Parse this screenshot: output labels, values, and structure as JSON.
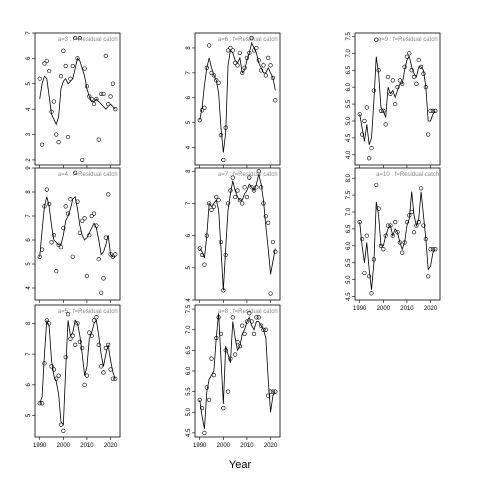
{
  "xlabel": "Year",
  "chart_data": [
    {
      "type": "scatter-line",
      "annotation": "a=3  :  f=Residual catch",
      "xlim": [
        1988,
        2024
      ],
      "xticks": [
        1990,
        2000,
        2010,
        2020
      ],
      "show_xticklabels": false,
      "ylim": [
        1.8,
        7.0
      ],
      "yticks": [
        2,
        3,
        4,
        5,
        6,
        7
      ],
      "x": [
        1990,
        1991,
        1992,
        1993,
        1994,
        1995,
        1996,
        1997,
        1998,
        1999,
        2000,
        2001,
        2002,
        2003,
        2004,
        2005,
        2006,
        2007,
        2008,
        2009,
        2010,
        2011,
        2012,
        2013,
        2014,
        2015,
        2016,
        2017,
        2018,
        2019,
        2020,
        2021,
        2022
      ],
      "series": [
        {
          "marker": "circle",
          "color": "#000000",
          "values": [
            5.2,
            2.6,
            5.8,
            5.9,
            5.5,
            3.9,
            4.3,
            3.0,
            2.7,
            5.3,
            6.3,
            5.7,
            2.9,
            5.2,
            5.7,
            6.8,
            6.0,
            6.8,
            2.0,
            5.6,
            4.9,
            4.5,
            4.4,
            4.2,
            4.4,
            2.8,
            4.6,
            4.6,
            6.1,
            4.2,
            4.5,
            5.0,
            4.0
          ]
        },
        {
          "marker": "none",
          "color": "#000000",
          "values": [
            4.4,
            5.0,
            5.3,
            5.2,
            4.5,
            3.8,
            3.6,
            3.4,
            3.7,
            4.8,
            5.1,
            5.2,
            5.0,
            5.1,
            5.2,
            5.6,
            6.0,
            5.9,
            5.6,
            5.3,
            4.8,
            4.5,
            4.3,
            4.3,
            4.4,
            4.3,
            4.2,
            4.1,
            4.0,
            4.1,
            4.2,
            4.1,
            4.0
          ]
        }
      ]
    },
    {
      "type": "scatter-line",
      "annotation": "a=4  :  f=Residual catch",
      "xlim": [
        1988,
        2024
      ],
      "xticks": [
        1990,
        2000,
        2010,
        2020
      ],
      "show_xticklabels": false,
      "ylim": [
        3.5,
        9.0
      ],
      "yticks": [
        4,
        5,
        6,
        7,
        8,
        9
      ],
      "x": [
        1990,
        1991,
        1992,
        1993,
        1994,
        1995,
        1996,
        1997,
        1998,
        1999,
        2000,
        2001,
        2002,
        2003,
        2004,
        2005,
        2006,
        2007,
        2008,
        2009,
        2010,
        2011,
        2012,
        2013,
        2014,
        2015,
        2016,
        2017,
        2018,
        2019,
        2020,
        2021,
        2022
      ],
      "series": [
        {
          "marker": "circle",
          "color": "#000000",
          "values": [
            5.3,
            5.6,
            7.4,
            8.1,
            7.5,
            5.9,
            6.2,
            4.7,
            5.8,
            5.7,
            6.5,
            7.4,
            7.1,
            7.7,
            5.3,
            8.8,
            7.6,
            6.3,
            6.8,
            6.9,
            4.5,
            6.2,
            7.0,
            7.1,
            6.6,
            5.2,
            3.8,
            4.4,
            6.1,
            7.9,
            5.4,
            5.3,
            5.4
          ]
        },
        {
          "marker": "none",
          "color": "#000000",
          "values": [
            5.3,
            6.4,
            7.4,
            7.8,
            7.4,
            6.6,
            6.0,
            5.9,
            5.8,
            5.8,
            6.2,
            6.8,
            7.0,
            7.3,
            7.7,
            7.8,
            7.3,
            6.6,
            6.2,
            6.0,
            6.1,
            6.3,
            6.5,
            6.7,
            6.5,
            6.0,
            5.4,
            5.5,
            5.8,
            6.2,
            5.4,
            5.3,
            5.3
          ]
        }
      ]
    },
    {
      "type": "scatter-line",
      "annotation": "a=5  :  f=Residual catch",
      "xlim": [
        1988,
        2024
      ],
      "xticks": [
        1990,
        2000,
        2010,
        2020
      ],
      "show_xticklabels": true,
      "ylim": [
        4.3,
        8.6
      ],
      "yticks": [
        5,
        6,
        7,
        8
      ],
      "x": [
        1990,
        1991,
        1992,
        1993,
        1994,
        1995,
        1996,
        1997,
        1998,
        1999,
        2000,
        2001,
        2002,
        2003,
        2004,
        2005,
        2006,
        2007,
        2008,
        2009,
        2010,
        2011,
        2012,
        2013,
        2014,
        2015,
        2016,
        2017,
        2018,
        2019,
        2020,
        2021,
        2022
      ],
      "series": [
        {
          "marker": "circle",
          "color": "#000000",
          "values": [
            5.4,
            5.4,
            6.7,
            8.1,
            8.0,
            6.6,
            6.5,
            6.2,
            6.3,
            4.7,
            4.5,
            6.9,
            8.3,
            7.5,
            7.6,
            7.3,
            8.0,
            7.4,
            7.2,
            6.0,
            6.3,
            7.7,
            7.6,
            8.1,
            8.2,
            7.3,
            6.6,
            6.4,
            7.2,
            7.3,
            6.5,
            6.2,
            6.2
          ]
        },
        {
          "marker": "none",
          "color": "#000000",
          "values": [
            5.4,
            5.6,
            7.0,
            8.1,
            7.9,
            6.8,
            6.3,
            6.1,
            5.7,
            4.8,
            4.7,
            6.5,
            8.1,
            7.6,
            7.7,
            8.1,
            8.0,
            7.6,
            7.0,
            6.3,
            6.6,
            7.5,
            7.7,
            8.0,
            8.1,
            7.6,
            7.0,
            6.6,
            7.0,
            7.3,
            6.8,
            6.4,
            6.2
          ]
        }
      ]
    },
    {
      "type": "scatter-line",
      "annotation": "a=6  :  f=Residual catch",
      "xlim": [
        1988,
        2024
      ],
      "xticks": [
        1990,
        2000,
        2010,
        2020
      ],
      "show_xticklabels": false,
      "ylim": [
        3.3,
        8.6
      ],
      "yticks": [
        4,
        5,
        6,
        7,
        8
      ],
      "x": [
        1990,
        1991,
        1992,
        1993,
        1994,
        1995,
        1996,
        1997,
        1998,
        1999,
        2000,
        2001,
        2002,
        2003,
        2004,
        2005,
        2006,
        2007,
        2008,
        2009,
        2010,
        2011,
        2012,
        2013,
        2014,
        2015,
        2016,
        2017,
        2018,
        2019,
        2020,
        2021,
        2022
      ],
      "series": [
        {
          "marker": "circle",
          "color": "#000000",
          "values": [
            5.1,
            5.5,
            5.6,
            7.2,
            8.1,
            7.0,
            6.9,
            6.7,
            6.6,
            4.5,
            3.5,
            4.8,
            7.9,
            8.0,
            7.9,
            7.4,
            7.3,
            7.8,
            7.0,
            7.2,
            7.6,
            7.8,
            8.4,
            7.9,
            8.0,
            7.5,
            7.1,
            7.3,
            6.9,
            7.6,
            7.3,
            6.8,
            5.9
          ]
        },
        {
          "marker": "none",
          "color": "#000000",
          "values": [
            5.1,
            5.6,
            6.5,
            7.2,
            7.6,
            7.2,
            6.9,
            6.7,
            6.2,
            4.8,
            3.8,
            4.6,
            7.3,
            7.9,
            7.8,
            7.5,
            7.4,
            7.6,
            7.0,
            7.1,
            7.5,
            7.8,
            8.2,
            8.0,
            7.8,
            7.4,
            7.2,
            7.0,
            7.0,
            7.2,
            7.0,
            6.8,
            6.3
          ]
        }
      ]
    },
    {
      "type": "scatter-line",
      "annotation": "a=7  :  f=Residual catch",
      "xlim": [
        1988,
        2024
      ],
      "xticks": [
        1990,
        2000,
        2010,
        2020
      ],
      "show_xticklabels": false,
      "ylim": [
        4.0,
        8.1
      ],
      "yticks": [
        4,
        5,
        6,
        7,
        8
      ],
      "x": [
        1990,
        1991,
        1992,
        1993,
        1994,
        1995,
        1996,
        1997,
        1998,
        1999,
        2000,
        2001,
        2002,
        2003,
        2004,
        2005,
        2006,
        2007,
        2008,
        2009,
        2010,
        2011,
        2012,
        2013,
        2014,
        2015,
        2016,
        2017,
        2018,
        2019,
        2020,
        2021,
        2022
      ],
      "series": [
        {
          "marker": "circle",
          "color": "#000000",
          "values": [
            5.6,
            5.4,
            5.1,
            6.0,
            7.0,
            6.8,
            6.9,
            7.2,
            7.1,
            5.8,
            4.3,
            5.4,
            7.0,
            7.4,
            7.8,
            7.2,
            7.4,
            7.1,
            7.0,
            7.5,
            7.2,
            7.8,
            7.5,
            7.4,
            7.5,
            8.0,
            7.5,
            7.0,
            6.6,
            6.4,
            4.2,
            5.8,
            5.5
          ]
        },
        {
          "marker": "none",
          "color": "#000000",
          "values": [
            5.6,
            5.5,
            5.3,
            6.0,
            7.0,
            6.9,
            7.0,
            7.1,
            6.8,
            5.6,
            4.3,
            5.6,
            6.8,
            7.3,
            7.7,
            7.4,
            7.2,
            7.1,
            7.1,
            7.3,
            7.4,
            7.6,
            7.5,
            7.4,
            7.6,
            7.9,
            7.6,
            7.1,
            6.3,
            5.6,
            4.8,
            5.2,
            5.6
          ]
        }
      ]
    },
    {
      "type": "scatter-line",
      "annotation": "a=8  :  f=Residual catch",
      "xlim": [
        1988,
        2024
      ],
      "xticks": [
        1990,
        2000,
        2010,
        2020
      ],
      "show_xticklabels": true,
      "ylim": [
        4.4,
        7.6
      ],
      "yticks": [
        {
          "value": 4.5,
          "label": "4.5"
        },
        {
          "value": 5,
          "label": "5.0"
        },
        {
          "value": 5.5,
          "label": "5.5"
        },
        {
          "value": 6,
          "label": "6.0"
        },
        {
          "value": 6.5,
          "label": "6.5"
        },
        {
          "value": 7,
          "label": "7.0"
        },
        {
          "value": 7.5,
          "label": "7.5"
        }
      ],
      "x": [
        1990,
        1991,
        1992,
        1993,
        1994,
        1995,
        1996,
        1997,
        1998,
        1999,
        2000,
        2001,
        2002,
        2003,
        2004,
        2005,
        2006,
        2007,
        2008,
        2009,
        2010,
        2011,
        2012,
        2013,
        2014,
        2015,
        2016,
        2017,
        2018,
        2019,
        2020,
        2021,
        2022
      ],
      "series": [
        {
          "marker": "circle",
          "color": "#000000",
          "values": [
            5.3,
            5.1,
            4.5,
            5.6,
            5.3,
            6.3,
            5.9,
            6.8,
            7.3,
            6.9,
            5.1,
            6.5,
            5.5,
            6.3,
            7.3,
            6.4,
            6.7,
            6.6,
            7.1,
            6.9,
            7.2,
            7.4,
            7.2,
            6.9,
            7.3,
            7.3,
            7.1,
            7.0,
            7.0,
            5.4,
            5.5,
            5.5,
            5.5
          ]
        },
        {
          "marker": "none",
          "color": "#000000",
          "values": [
            5.3,
            4.9,
            4.6,
            5.5,
            5.8,
            5.9,
            6.0,
            6.8,
            7.4,
            6.3,
            5.2,
            6.6,
            6.4,
            6.2,
            7.2,
            6.8,
            6.5,
            6.6,
            6.9,
            7.0,
            7.2,
            7.3,
            7.1,
            7.0,
            7.2,
            7.2,
            7.1,
            7.0,
            6.8,
            5.8,
            5.0,
            5.4,
            5.5
          ]
        }
      ]
    },
    {
      "type": "scatter-line",
      "annotation": "a=9  :  f=Residual catch",
      "xlim": [
        1988,
        2024
      ],
      "xticks": [
        1990,
        2000,
        2010,
        2020
      ],
      "show_xticklabels": false,
      "ylim": [
        3.7,
        7.6
      ],
      "yticks": [
        {
          "value": 4,
          "label": "4.0"
        },
        {
          "value": 4.5,
          "label": "4.5"
        },
        {
          "value": 5,
          "label": "5.0"
        },
        {
          "value": 5.5,
          "label": "5.5"
        },
        {
          "value": 6,
          "label": "6.0"
        },
        {
          "value": 6.5,
          "label": "6.5"
        },
        {
          "value": 7,
          "label": "7.0"
        },
        {
          "value": 7.5,
          "label": "7.5"
        }
      ],
      "x": [
        1990,
        1991,
        1992,
        1993,
        1994,
        1995,
        1996,
        1997,
        1998,
        1999,
        2000,
        2001,
        2002,
        2003,
        2004,
        2005,
        2006,
        2007,
        2008,
        2009,
        2010,
        2011,
        2012,
        2013,
        2014,
        2015,
        2016,
        2017,
        2018,
        2019,
        2020,
        2021,
        2022
      ],
      "series": [
        {
          "marker": "circle",
          "color": "#000000",
          "values": [
            5.2,
            4.6,
            5.0,
            5.4,
            3.9,
            4.2,
            5.9,
            7.4,
            6.5,
            5.3,
            5.3,
            4.9,
            6.3,
            5.8,
            6.2,
            5.5,
            6.0,
            6.2,
            6.1,
            6.6,
            6.9,
            7.0,
            6.5,
            6.3,
            6.1,
            6.8,
            6.6,
            6.4,
            6.0,
            4.6,
            5.3,
            5.3,
            5.3
          ]
        },
        {
          "marker": "none",
          "color": "#000000",
          "values": [
            5.2,
            4.8,
            4.4,
            4.9,
            4.3,
            4.5,
            5.6,
            6.9,
            6.4,
            5.4,
            5.3,
            5.1,
            6.0,
            5.8,
            5.9,
            5.7,
            5.9,
            6.1,
            6.1,
            6.5,
            6.8,
            6.9,
            6.6,
            6.4,
            6.3,
            6.6,
            6.6,
            6.5,
            6.0,
            5.0,
            5.0,
            5.2,
            5.3
          ]
        }
      ]
    },
    {
      "type": "scatter-line",
      "annotation": "a=10  :  f=Residual catch",
      "xlim": [
        1988,
        2024
      ],
      "xticks": [
        1990,
        2000,
        2010,
        2020
      ],
      "show_xticklabels": true,
      "ylim": [
        4.4,
        8.3
      ],
      "yticks": [
        {
          "value": 4.5,
          "label": "4.5"
        },
        {
          "value": 5,
          "label": "5.0"
        },
        {
          "value": 5.5,
          "label": "5.5"
        },
        {
          "value": 6,
          "label": "6.0"
        },
        {
          "value": 6.5,
          "label": "6.5"
        },
        {
          "value": 7,
          "label": "7.0"
        },
        {
          "value": 7.5,
          "label": "7.5"
        },
        {
          "value": 8,
          "label": "8.0"
        }
      ],
      "x": [
        1990,
        1991,
        1992,
        1993,
        1994,
        1995,
        1996,
        1997,
        1998,
        1999,
        2000,
        2001,
        2002,
        2003,
        2004,
        2005,
        2006,
        2007,
        2008,
        2009,
        2010,
        2011,
        2012,
        2013,
        2014,
        2015,
        2016,
        2017,
        2018,
        2019,
        2020,
        2021,
        2022
      ],
      "series": [
        {
          "marker": "circle",
          "color": "#000000",
          "values": [
            6.7,
            6.2,
            5.2,
            6.3,
            5.1,
            4.6,
            5.6,
            7.8,
            7.1,
            6.0,
            5.9,
            6.3,
            6.6,
            6.6,
            6.3,
            6.7,
            6.4,
            6.1,
            5.8,
            6.1,
            6.7,
            6.9,
            7.0,
            6.4,
            6.6,
            6.7,
            7.7,
            6.6,
            6.2,
            5.1,
            5.9,
            5.9,
            5.9
          ]
        },
        {
          "marker": "none",
          "color": "#000000",
          "values": [
            6.7,
            6.0,
            5.5,
            6.1,
            5.3,
            4.7,
            5.5,
            7.3,
            6.9,
            6.0,
            6.0,
            6.3,
            6.5,
            6.6,
            6.3,
            6.5,
            6.4,
            6.1,
            5.9,
            6.1,
            6.6,
            6.8,
            7.6,
            6.9,
            6.6,
            6.8,
            7.6,
            6.9,
            6.2,
            5.3,
            5.4,
            5.8,
            5.9
          ]
        }
      ]
    }
  ]
}
